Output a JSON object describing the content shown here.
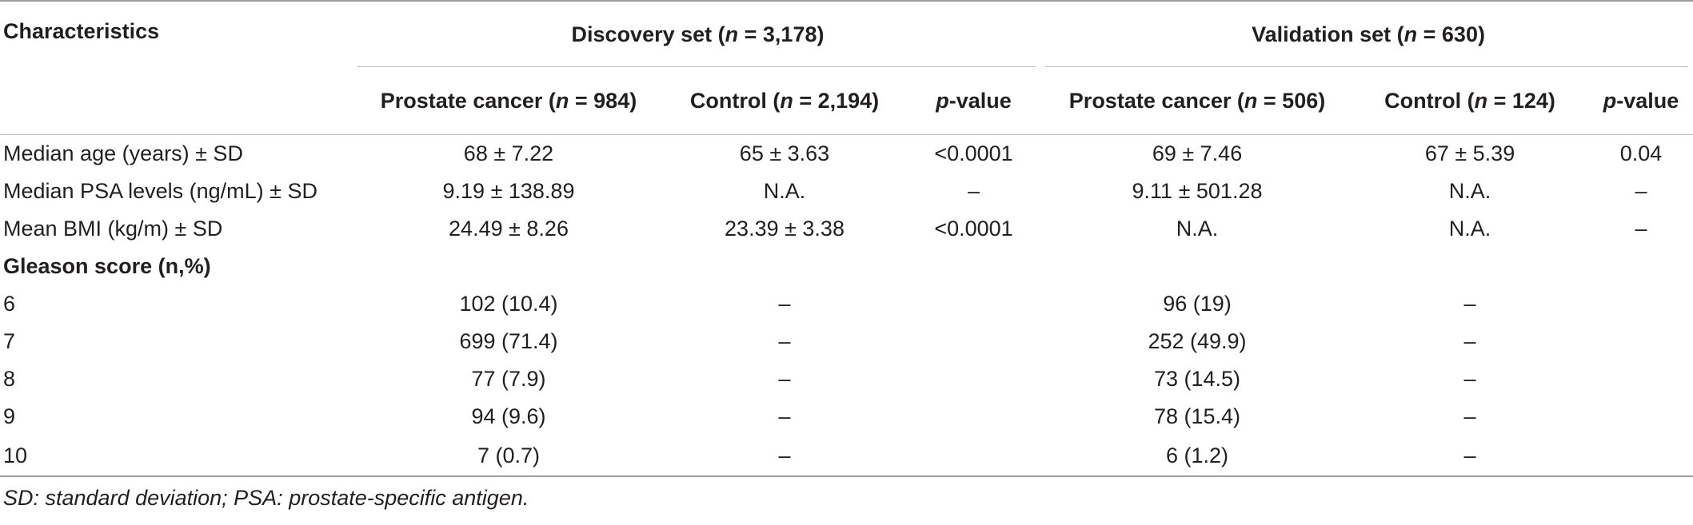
{
  "header": {
    "characteristics": "Characteristics",
    "discovery": {
      "prefix": "Discovery set (",
      "n": "n",
      "suffix": " = 3,178)"
    },
    "validation": {
      "prefix": "Validation set (",
      "n": "n",
      "suffix": " = 630)"
    },
    "subcols": [
      {
        "prefix": "Prostate cancer (",
        "n": "n",
        "suffix": " = 984)"
      },
      {
        "prefix": "Control (",
        "n": "n",
        "suffix": " = 2,194)"
      },
      {
        "prefix": "",
        "n": "p",
        "suffix": "-value"
      },
      {
        "prefix": "Prostate cancer (",
        "n": "n",
        "suffix": " = 506)"
      },
      {
        "prefix": "Control (",
        "n": "n",
        "suffix": " = 124)"
      },
      {
        "prefix": "",
        "n": "p",
        "suffix": "-value"
      }
    ]
  },
  "rows": [
    {
      "label": "Median age (years) ± SD",
      "values": [
        "68 ± 7.22",
        "65 ± 3.63",
        "<0.0001",
        "69 ± 7.46",
        "67 ± 5.39",
        "0.04"
      ]
    },
    {
      "label": "Median PSA levels (ng/mL) ± SD",
      "values": [
        "9.19 ± 138.89",
        "N.A.",
        "–",
        "9.11 ± 501.28",
        "N.A.",
        "–"
      ]
    },
    {
      "label": "Mean BMI (kg/m) ± SD",
      "values": [
        "24.49 ± 8.26",
        "23.39 ± 3.38",
        "<0.0001",
        "N.A.",
        "N.A.",
        "–"
      ]
    },
    {
      "label": "Gleason score (n,%)",
      "values": [
        "",
        "",
        "",
        "",
        "",
        ""
      ],
      "section": true
    },
    {
      "label": "6",
      "values": [
        "102 (10.4)",
        "–",
        "",
        "96 (19)",
        "–",
        ""
      ]
    },
    {
      "label": "7",
      "values": [
        "699 (71.4)",
        "–",
        "",
        "252 (49.9)",
        "–",
        ""
      ]
    },
    {
      "label": "8",
      "values": [
        "77 (7.9)",
        "–",
        "",
        "73 (14.5)",
        "–",
        ""
      ]
    },
    {
      "label": "9",
      "values": [
        "94 (9.6)",
        "–",
        "",
        "78 (15.4)",
        "–",
        ""
      ]
    },
    {
      "label": "10",
      "values": [
        "7 (0.7)",
        "–",
        "",
        "6 (1.2)",
        "–",
        ""
      ]
    }
  ],
  "footnote": "SD: standard deviation; PSA: prostate-specific antigen."
}
